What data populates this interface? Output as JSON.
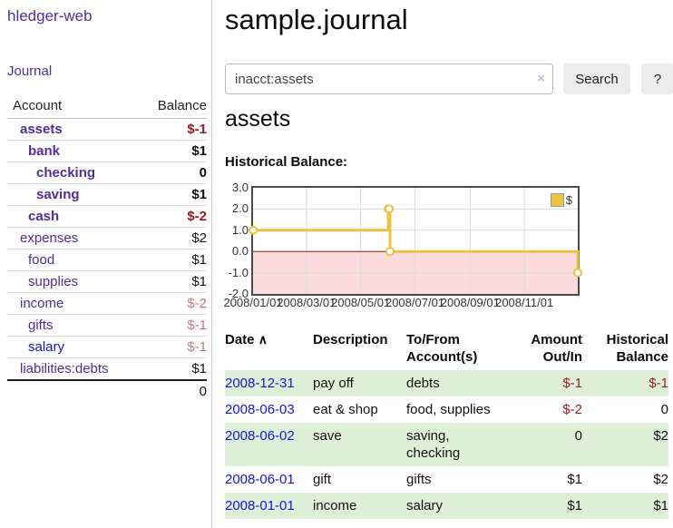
{
  "app": {
    "title": "hledger-web",
    "nav_journal": "Journal"
  },
  "sidebar": {
    "col_account": "Account",
    "col_balance": "Balance",
    "accounts": [
      {
        "name": "assets",
        "balance": "$-1",
        "level": 1,
        "bold": true,
        "balance_style": "negstrong",
        "blue": false
      },
      {
        "name": "bank",
        "balance": "$1",
        "level": 2,
        "bold": true,
        "balance_style": "",
        "blue": false
      },
      {
        "name": "checking",
        "balance": "0",
        "level": 3,
        "bold": true,
        "balance_style": "",
        "blue": false
      },
      {
        "name": "saving",
        "balance": "$1",
        "level": 3,
        "bold": true,
        "balance_style": "",
        "blue": false
      },
      {
        "name": "cash",
        "balance": "$-2",
        "level": 2,
        "bold": true,
        "balance_style": "negstrong",
        "blue": false
      },
      {
        "name": "expenses",
        "balance": "$2",
        "level": 1,
        "bold": false,
        "balance_style": "",
        "blue": false
      },
      {
        "name": "food",
        "balance": "$1",
        "level": 2,
        "bold": false,
        "balance_style": "",
        "blue": false
      },
      {
        "name": "supplies",
        "balance": "$1",
        "level": 2,
        "bold": false,
        "balance_style": "",
        "blue": false
      },
      {
        "name": "income",
        "balance": "$-2",
        "level": 1,
        "bold": false,
        "balance_style": "negsoft",
        "blue": false
      },
      {
        "name": "gifts",
        "balance": "$-1",
        "level": 2,
        "bold": false,
        "balance_style": "negsoft",
        "blue": false
      },
      {
        "name": "salary",
        "balance": "$-1",
        "level": 2,
        "bold": false,
        "balance_style": "negsoft",
        "blue": true
      },
      {
        "name": "liabilities:debts",
        "balance": "$1",
        "level": 1,
        "bold": false,
        "balance_style": "",
        "blue": false
      }
    ],
    "total": "0"
  },
  "header": {
    "title": "sample.journal"
  },
  "search": {
    "value": "inacct:assets",
    "clear_icon": "×",
    "search_label": "Search",
    "help_label": "?"
  },
  "account_view": {
    "heading": "assets",
    "chart_title": "Historical Balance:"
  },
  "chart_data": {
    "type": "line",
    "step": true,
    "title": "Historical Balance:",
    "legend": "$",
    "legend_position": "top-right",
    "grid": true,
    "x_range": [
      "2008-01-01",
      "2008-12-31"
    ],
    "ylim": [
      -2,
      3
    ],
    "yticks": [
      {
        "label": "3.0"
      },
      {
        "label": "2.0"
      },
      {
        "label": "1.0"
      },
      {
        "label": "0.0"
      },
      {
        "label": "-1.0"
      },
      {
        "label": "-2.0"
      }
    ],
    "xticks": [
      {
        "label": "2008/01/01",
        "date": "2008-01-01"
      },
      {
        "label": "2008/03/01",
        "date": "2008-03-01"
      },
      {
        "label": "2008/05/01",
        "date": "2008-05-01"
      },
      {
        "label": "2008/07/01",
        "date": "2008-07-01"
      },
      {
        "label": "2008/09/01",
        "date": "2008-09-01"
      },
      {
        "label": "2008/11/01",
        "date": "2008-11-01"
      }
    ],
    "series": [
      {
        "name": "$",
        "color": "#edc240",
        "points": [
          {
            "date": "2008-01-01",
            "value": 1
          },
          {
            "date": "2008-06-01",
            "value": 2
          },
          {
            "date": "2008-06-02",
            "value": 2
          },
          {
            "date": "2008-06-03",
            "value": 0
          },
          {
            "date": "2008-12-31",
            "value": -1
          }
        ]
      }
    ],
    "negative_fill": "#fbdbdb",
    "zero_line_color": "#8e1a1a",
    "grid_color": "#dcdcdc",
    "border_color": "#4a4a4a"
  },
  "register": {
    "sort_icon": "∧",
    "headers": {
      "date": "Date",
      "description": "Description",
      "accounts": "To/From Account(s)",
      "amount": "Amount Out/In",
      "balance": "Historical Balance"
    },
    "rows": [
      {
        "date": "2008-12-31",
        "description": "pay off",
        "accounts": "debts",
        "amount": "$-1",
        "balance": "$-1",
        "amount_neg": true,
        "balance_neg": true
      },
      {
        "date": "2008-06-03",
        "description": "eat & shop",
        "accounts": "food, supplies",
        "amount": "$-2",
        "balance": "0",
        "amount_neg": true,
        "balance_neg": false
      },
      {
        "date": "2008-06-02",
        "description": "save",
        "accounts": "saving, checking",
        "amount": "0",
        "balance": "$2",
        "amount_neg": false,
        "balance_neg": false
      },
      {
        "date": "2008-06-01",
        "description": "gift",
        "accounts": "gifts",
        "amount": "$1",
        "balance": "$2",
        "amount_neg": false,
        "balance_neg": false
      },
      {
        "date": "2008-01-01",
        "description": "income",
        "accounts": "salary",
        "amount": "$1",
        "balance": "$1",
        "amount_neg": false,
        "balance_neg": false
      }
    ]
  }
}
